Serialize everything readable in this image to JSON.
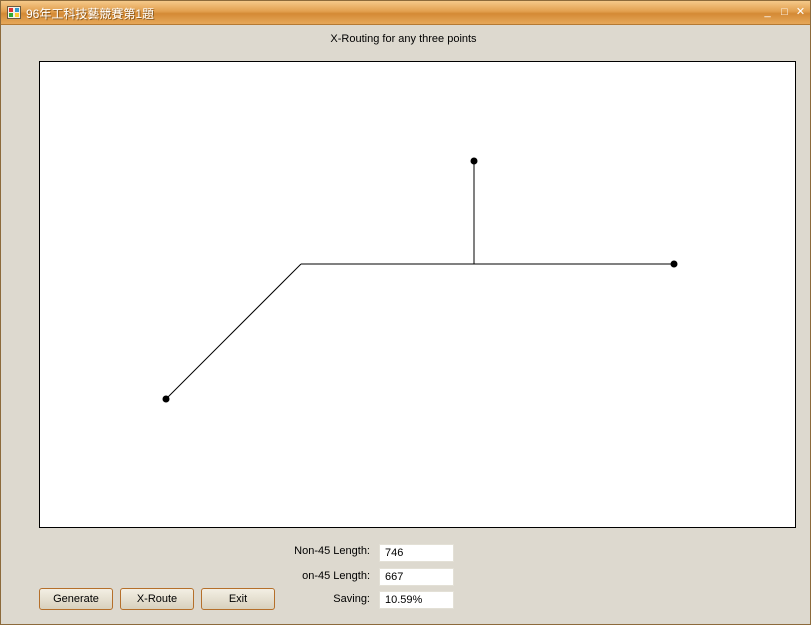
{
  "window": {
    "title": "96年工科技藝競賽第1題",
    "controls": {
      "minimize": "_",
      "maximize": "□",
      "close": "✕"
    },
    "icon": "app-window-icon"
  },
  "heading": "X-Routing for any three points",
  "results": {
    "non45_label": "Non-45 Length:",
    "non45_value": "746",
    "on45_label": "on-45 Length:",
    "on45_value": "667",
    "saving_label": "Saving:",
    "saving_value": "10.59%"
  },
  "buttons": {
    "generate": "Generate",
    "xroute": "X-Route",
    "exit": "Exit"
  },
  "colors": {
    "titlebar": "#e2a04f",
    "canvas_bg": "#ffffff",
    "route_line": "#000000"
  }
}
